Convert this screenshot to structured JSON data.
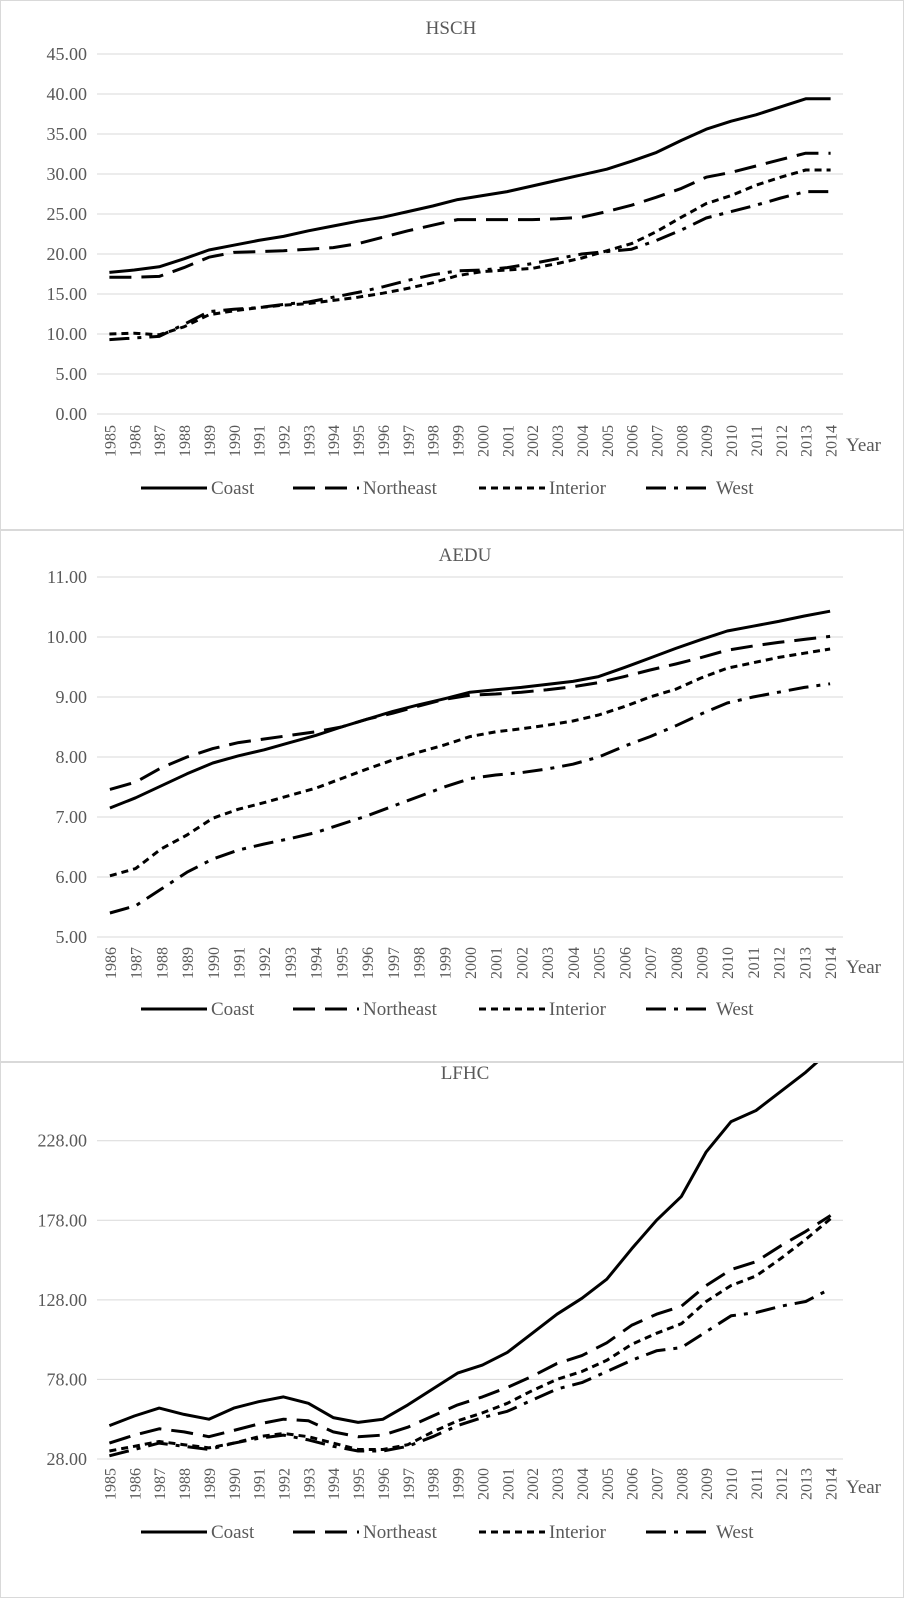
{
  "chart_data": [
    {
      "type": "line",
      "title": "HSCH",
      "xlabel": "Year",
      "ylabel": "",
      "ylim": [
        0,
        45
      ],
      "y_ticks": [
        "0.00",
        "5.00",
        "10.00",
        "15.00",
        "20.00",
        "25.00",
        "30.00",
        "35.00",
        "40.00",
        "45.00"
      ],
      "categories": [
        "1985",
        "1986",
        "1987",
        "1988",
        "1989",
        "1990",
        "1991",
        "1992",
        "1993",
        "1994",
        "1995",
        "1996",
        "1997",
        "1998",
        "1999",
        "2000",
        "2001",
        "2002",
        "2003",
        "2004",
        "2005",
        "2006",
        "2007",
        "2008",
        "2009",
        "2010",
        "2011",
        "2012",
        "2013",
        "2014"
      ],
      "series": [
        {
          "name": "Coast",
          "style": "solid",
          "values": [
            17.7,
            18.0,
            18.4,
            19.4,
            20.5,
            21.1,
            21.7,
            22.2,
            22.9,
            23.5,
            24.1,
            24.6,
            25.3,
            26.0,
            26.8,
            27.3,
            27.8,
            28.5,
            29.2,
            29.9,
            30.6,
            31.6,
            32.7,
            34.2,
            35.6,
            36.6,
            37.4,
            38.4,
            39.4,
            39.4
          ]
        },
        {
          "name": "Northeast",
          "style": "long-dash",
          "values": [
            17.1,
            17.1,
            17.2,
            18.3,
            19.6,
            20.2,
            20.3,
            20.4,
            20.6,
            20.8,
            21.3,
            22.1,
            22.9,
            23.6,
            24.3,
            24.3,
            24.3,
            24.3,
            24.4,
            24.6,
            25.3,
            26.1,
            27.1,
            28.2,
            29.6,
            30.2,
            31.0,
            31.8,
            32.6,
            32.6
          ]
        },
        {
          "name": "Interior",
          "style": "short-dash",
          "values": [
            10.0,
            10.1,
            9.9,
            10.9,
            12.4,
            12.9,
            13.3,
            13.6,
            13.8,
            14.2,
            14.6,
            15.1,
            15.7,
            16.4,
            17.3,
            17.8,
            18.0,
            18.2,
            18.8,
            19.5,
            20.4,
            21.3,
            22.8,
            24.6,
            26.3,
            27.3,
            28.6,
            29.6,
            30.5,
            30.5
          ]
        },
        {
          "name": "West",
          "style": "dash-dot",
          "values": [
            9.3,
            9.5,
            9.7,
            11.2,
            12.8,
            13.1,
            13.3,
            13.7,
            14.0,
            14.6,
            15.2,
            15.9,
            16.7,
            17.4,
            17.9,
            18.0,
            18.3,
            18.8,
            19.4,
            20.0,
            20.3,
            20.6,
            21.7,
            23.0,
            24.5,
            25.3,
            26.1,
            27.0,
            27.8,
            27.8
          ]
        }
      ],
      "legend_position": "bottom"
    },
    {
      "type": "line",
      "title": "AEDU",
      "xlabel": "Year",
      "ylabel": "",
      "ylim": [
        5,
        11
      ],
      "y_ticks": [
        "5.00",
        "6.00",
        "7.00",
        "8.00",
        "9.00",
        "10.00",
        "11.00"
      ],
      "categories": [
        "1986",
        "1987",
        "1988",
        "1989",
        "1990",
        "1991",
        "1992",
        "1993",
        "1994",
        "1995",
        "1996",
        "1997",
        "1998",
        "1999",
        "2000",
        "2001",
        "2002",
        "2003",
        "2004",
        "2005",
        "2006",
        "2007",
        "2008",
        "2009",
        "2010",
        "2011",
        "2012",
        "2013",
        "2014"
      ],
      "series": [
        {
          "name": "Coast",
          "style": "solid",
          "values": [
            7.15,
            7.32,
            7.52,
            7.72,
            7.9,
            8.02,
            8.12,
            8.24,
            8.36,
            8.5,
            8.63,
            8.76,
            8.87,
            8.97,
            9.08,
            9.12,
            9.16,
            9.21,
            9.26,
            9.34,
            9.49,
            9.65,
            9.81,
            9.96,
            10.1,
            10.18,
            10.26,
            10.35,
            10.43
          ]
        },
        {
          "name": "Northeast",
          "style": "long-dash",
          "values": [
            7.46,
            7.58,
            7.82,
            8.0,
            8.14,
            8.24,
            8.3,
            8.36,
            8.42,
            8.5,
            8.63,
            8.73,
            8.85,
            8.96,
            9.03,
            9.05,
            9.08,
            9.12,
            9.17,
            9.24,
            9.34,
            9.45,
            9.55,
            9.66,
            9.78,
            9.85,
            9.91,
            9.96,
            10.01
          ]
        },
        {
          "name": "Interior",
          "style": "short-dash",
          "values": [
            6.02,
            6.14,
            6.47,
            6.7,
            6.98,
            7.13,
            7.24,
            7.36,
            7.48,
            7.64,
            7.8,
            7.95,
            8.08,
            8.2,
            8.34,
            8.42,
            8.47,
            8.53,
            8.6,
            8.7,
            8.84,
            9.0,
            9.13,
            9.32,
            9.48,
            9.57,
            9.66,
            9.73,
            9.8
          ]
        },
        {
          "name": "West",
          "style": "dash-dot",
          "values": [
            5.4,
            5.52,
            5.8,
            6.08,
            6.3,
            6.45,
            6.55,
            6.64,
            6.74,
            6.88,
            7.02,
            7.18,
            7.34,
            7.5,
            7.64,
            7.7,
            7.74,
            7.8,
            7.88,
            8.0,
            8.18,
            8.34,
            8.52,
            8.72,
            8.9,
            9.0,
            9.08,
            9.16,
            9.22
          ]
        }
      ],
      "legend_position": "bottom"
    },
    {
      "type": "line",
      "title": "LFHC",
      "xlabel": "Year",
      "ylabel": "",
      "ylim": [
        28,
        258
      ],
      "y_ticks": [
        "28.00",
        "78.00",
        "128.00",
        "178.00",
        "228.00"
      ],
      "categories": [
        "1985",
        "1986",
        "1987",
        "1988",
        "1989",
        "1990",
        "1991",
        "1992",
        "1993",
        "1994",
        "1995",
        "1996",
        "1997",
        "1998",
        "1999",
        "2000",
        "2001",
        "2002",
        "2003",
        "2004",
        "2005",
        "2006",
        "2007",
        "2008",
        "2009",
        "2010",
        "2011",
        "2012",
        "2013",
        "2014"
      ],
      "series": [
        {
          "name": "Coast",
          "style": "solid",
          "values": [
            49,
            55,
            60,
            56,
            53,
            60,
            64,
            67,
            63,
            54,
            51,
            53,
            62,
            72,
            82,
            87,
            95,
            107,
            119,
            129,
            141,
            160,
            178,
            193,
            221,
            240,
            247,
            259,
            271,
            285
          ]
        },
        {
          "name": "Northeast",
          "style": "long-dash",
          "values": [
            38,
            43,
            47,
            45,
            42,
            46,
            50,
            53,
            52,
            45,
            42,
            43,
            48,
            55,
            62,
            67,
            73,
            80,
            88,
            93,
            101,
            112,
            119,
            124,
            137,
            147,
            152,
            162,
            171,
            181
          ]
        },
        {
          "name": "Interior",
          "style": "short-dash",
          "values": [
            33,
            36,
            39,
            37,
            35,
            38,
            42,
            44,
            42,
            38,
            34,
            34,
            37,
            45,
            52,
            57,
            63,
            71,
            78,
            83,
            90,
            100,
            107,
            113,
            127,
            137,
            143,
            154,
            166,
            179
          ]
        },
        {
          "name": "West",
          "style": "dash-dot",
          "values": [
            30,
            34,
            38,
            36,
            34,
            38,
            41,
            43,
            40,
            36,
            33,
            33,
            36,
            42,
            49,
            54,
            58,
            65,
            72,
            76,
            83,
            90,
            96,
            98,
            108,
            118,
            120,
            124,
            127,
            135
          ]
        }
      ],
      "legend_position": "bottom"
    }
  ]
}
